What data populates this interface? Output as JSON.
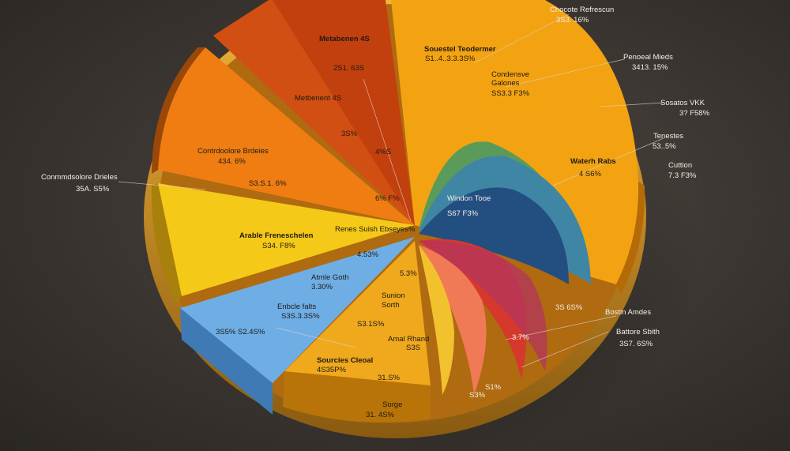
{
  "chart_data": {
    "type": "pie",
    "title": "",
    "slices": [
      {
        "name": "Contrdoolore Brdeies",
        "value_label": "4 34.6%",
        "color": "#ef7d12"
      },
      {
        "name": "Arable Freneschelen",
        "value_label": "S34. F8%",
        "color": "#f5c917"
      },
      {
        "name": "Atmle Goth",
        "value_label": "3.30%",
        "color": "#6faee5"
      },
      {
        "name": "Sourcies Cleoal",
        "value_label": "4S35P%",
        "color": "#f0a81d"
      },
      {
        "name": "Metabenen 4S",
        "value_label": "2S1. 63S",
        "color": "#c74210"
      },
      {
        "name": "Souestel Teodermer",
        "value_label": "S1..4..3.3.3S%",
        "color": "#f3a311"
      },
      {
        "name": "Condensve Galones",
        "value_label": "SS3.3 F3%",
        "color": "#e9b42a"
      },
      {
        "name": "Waterh Rabs",
        "value_label": "4 S6%",
        "color": "#d6a32a"
      },
      {
        "name": "Windon Tooe",
        "value_label": "S67 F3%",
        "color": "#2d6b9a"
      },
      {
        "name": "Bostin Amdes",
        "value_label": "S3S 65%",
        "color": "#e1473c"
      }
    ]
  },
  "labels": {
    "l01": "Chocote Refrescun",
    "l02": "3S3. 16%",
    "l03": "Metabenen 4S",
    "l04": "2S1. 63S",
    "l05": "Metbenent 4S",
    "l06": "Souestel Teodermer",
    "l07": "S1..4..3.3.3S%",
    "l08": "Condensve",
    "l09": "Galones",
    "l10": "SS3.3 F3%",
    "l11": "Penoeal Mieds",
    "l12": "3413. 15%",
    "l13": "Sosatos VKK",
    "l14": "3? F58%",
    "l15": "Tenestes",
    "l16": "53..5%",
    "l17": "Waterh Rabs",
    "l18": "4 S6%",
    "l19": "Cuttion",
    "l20": "7.3 F3%",
    "l21": "Contrdoolore Brdeies",
    "l22": "434. 6%",
    "l23": "S3.S.1. 6%",
    "l24": "Conmmdsolore Drieles",
    "l25": "35A. S5%",
    "l26": "3S%",
    "l27": "4%S",
    "l28": "6% F%",
    "l29": "Arable Freneschelen",
    "l30": "S34. F8%",
    "l31": "Renes Suish Ebseyes%",
    "l32": "4.53%",
    "l33": "Windon Tooe",
    "l34": "S67 F3%",
    "l35": "Atmle Goth",
    "l36": "3.30%",
    "l37": "5.3%",
    "l38": "Enbcle falts",
    "l39": "S3S.3.3S%",
    "l40": "3S5% S2.4S%",
    "l41": "Sunion",
    "l42": "Sorth",
    "l43": "S3.1S%",
    "l44": "Amal Rhand",
    "l45": "S3S",
    "l46": "Sourcies Cleoal",
    "l47": "4S35P%",
    "l48": "31.S%",
    "l49": "Sorge",
    "l50": "31. 4S%",
    "l51": "3S 6S%",
    "l52": "Bostin Amdes",
    "l53": "Battore Sbith",
    "l54": "3S7. 6S%",
    "l55": "3.7%",
    "l56": "S1%",
    "l57": "S3%"
  }
}
